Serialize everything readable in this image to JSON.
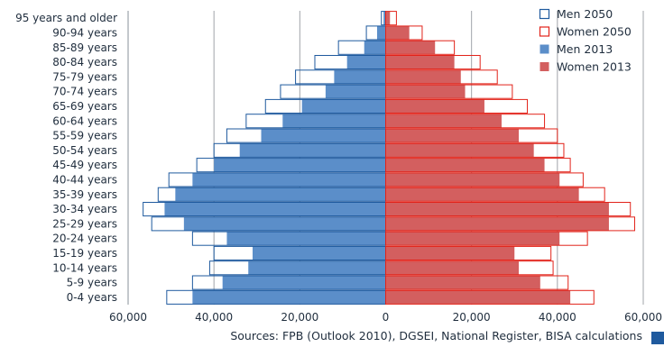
{
  "chart_data": {
    "type": "bar",
    "orientation": "horizontal",
    "categories": [
      "0-4 years",
      "5-9 years",
      "10-14 years",
      "15-19 years",
      "20-24 years",
      "25-29 years",
      "30-34 years",
      "35-39 years",
      "40-44 years",
      "45-49 years",
      "50-54 years",
      "55-59 years",
      "60-64 years",
      "65-69 years",
      "70-74 years",
      "75-79 years",
      "80-84 years",
      "85-89 years",
      "90-94 years",
      "95 years and older"
    ],
    "series": [
      {
        "name": "Men 2050",
        "style": "outline",
        "color": "#1f5a9e",
        "side": "left",
        "values": [
          51000,
          45000,
          41000,
          40000,
          45000,
          54500,
          56500,
          53000,
          50500,
          44000,
          40000,
          37000,
          32500,
          28000,
          24500,
          21000,
          16500,
          11000,
          4500,
          1000
        ]
      },
      {
        "name": "Women 2050",
        "style": "outline",
        "color": "#e2231a",
        "side": "right",
        "values": [
          48500,
          42500,
          39000,
          38500,
          47000,
          58000,
          57000,
          51000,
          46000,
          43000,
          41500,
          40000,
          37000,
          33000,
          29500,
          26000,
          22000,
          16000,
          8500,
          2500
        ]
      },
      {
        "name": "Men 2013",
        "style": "filled",
        "color": "#5b8ec9",
        "side": "left",
        "values": [
          45000,
          38000,
          32000,
          31000,
          37000,
          47000,
          51500,
          49000,
          45000,
          40000,
          34000,
          29000,
          24000,
          19500,
          14000,
          12000,
          9000,
          5000,
          2000,
          500
        ]
      },
      {
        "name": "Women 2013",
        "style": "filled",
        "color": "#d35f5f",
        "side": "right",
        "values": [
          43000,
          36000,
          31000,
          30000,
          40500,
          52000,
          52000,
          45000,
          40500,
          37000,
          34500,
          31000,
          27000,
          23000,
          18500,
          17500,
          16000,
          11500,
          5500,
          1000
        ]
      }
    ],
    "x_ticks": [
      "60,000",
      "40,000",
      "20,000",
      "0",
      "20,000",
      "40,000",
      "60,000"
    ],
    "xlim": [
      -60000,
      60000
    ],
    "grid": "vertical",
    "legend_position": "top-right"
  },
  "footer": {
    "source": "Sources: FPB (Outlook 2010), DGSEI, National Register, BISA calculations",
    "mark_color": "#1f5a9e"
  }
}
